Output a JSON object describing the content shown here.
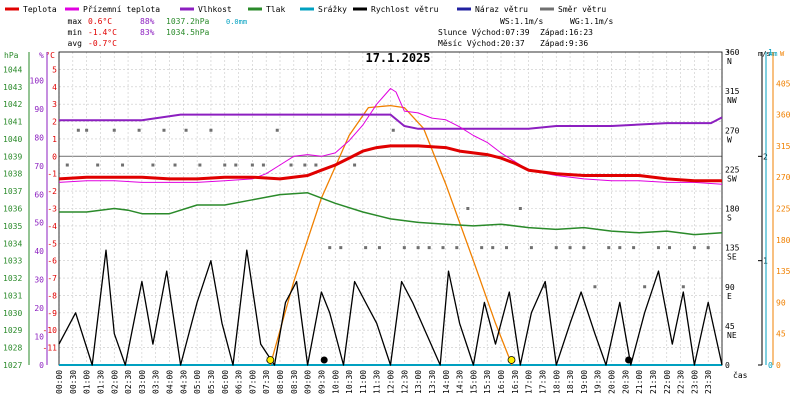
{
  "legend": [
    {
      "label": "Teplota",
      "color": "#e00000"
    },
    {
      "label": "Přízemní teplota",
      "color": "#e000e0"
    },
    {
      "label": "Vlhkost",
      "color": "#8c1fc0"
    },
    {
      "label": "Tlak",
      "color": "#2a8a2a"
    },
    {
      "label": "Srážky",
      "color": "#00a0c0"
    },
    {
      "label": "Rychlost větru",
      "color": "#000000"
    },
    {
      "label": "Náraz větru",
      "color": "#2020a0"
    },
    {
      "label": "Směr větru",
      "color": "#707070"
    }
  ],
  "stats": {
    "max_label": "max",
    "max_temp": "0.6°C",
    "max_hum": "88%",
    "max_press": "1037.2hPa",
    "max_rain": "0.0mm",
    "min_label": "min",
    "min_temp": "-1.4°C",
    "min_hum": "83%",
    "min_press": "1034.5hPa",
    "avg_label": "avg",
    "avg_temp": "-0.7°C"
  },
  "wind_info": {
    "ws": "WS:1.1m/s",
    "wg": "WG:1.1m/s",
    "sun": "Slunce Východ:07:39",
    "sun_set": "Západ:16:23",
    "moon": "Měsíc  Východ:20:37",
    "moon_set": "Západ:9:36"
  },
  "title": "17.1.2025",
  "axis_units": {
    "hpa": "hPa",
    "pct": "%",
    "degc": "°C",
    "deg": "°",
    "ms": "m/s",
    "mm": "mm",
    "w": "W",
    "cas": "čas"
  },
  "colors": {
    "temp": "#e00000",
    "ground": "#e000e0",
    "hum": "#8c1fc0",
    "press": "#2a8a2a",
    "rain": "#00a0c0",
    "wind": "#000000",
    "dir": "#707070",
    "solar": "#f08000",
    "grid": "#c8c8c8",
    "zero": "#808080"
  },
  "chart_data": {
    "type": "line",
    "title": "17.1.2025",
    "x_unit": "čas",
    "x_ticks": [
      "00:00",
      "00:30",
      "01:00",
      "01:30",
      "02:00",
      "02:30",
      "03:00",
      "03:30",
      "04:00",
      "04:30",
      "05:00",
      "05:30",
      "06:00",
      "06:30",
      "07:00",
      "07:30",
      "08:00",
      "08:30",
      "09:00",
      "09:30",
      "10:00",
      "10:30",
      "11:00",
      "11:30",
      "12:00",
      "12:30",
      "13:00",
      "13:30",
      "14:00",
      "14:30",
      "15:00",
      "15:30",
      "16:00",
      "16:30",
      "17:00",
      "17:30",
      "18:00",
      "18:30",
      "19:00",
      "19:30",
      "20:00",
      "20:30",
      "21:00",
      "21:30",
      "22:00",
      "22:30",
      "23:00",
      "23:30"
    ],
    "axes": {
      "pressure_hpa": {
        "range": [
          1027,
          1045
        ],
        "ticks": [
          "1027",
          "1028",
          "1029",
          "1030",
          "1031",
          "1032",
          "1033",
          "1034",
          "1035",
          "1036",
          "1037",
          "1038",
          "1039",
          "1040",
          "1041",
          "1042",
          "1043",
          "1044"
        ]
      },
      "humidity_pct": {
        "range": [
          0,
          110
        ],
        "ticks": [
          "0",
          "10",
          "20",
          "30",
          "40",
          "50",
          "60",
          "70",
          "80",
          "90",
          "100"
        ]
      },
      "temp_c": {
        "range": [
          -12,
          6
        ],
        "ticks": [
          "-11",
          "-10",
          "-9",
          "-8",
          "-7",
          "-6",
          "-5",
          "-4",
          "-3",
          "-2",
          "-1",
          "0",
          "1",
          "2",
          "3",
          "4",
          "5"
        ]
      },
      "direction_deg": {
        "range": [
          0,
          360
        ],
        "ticks": [
          "0",
          "45",
          "90",
          "135",
          "180",
          "225",
          "270",
          "315",
          "360"
        ],
        "compass": [
          "",
          "NE",
          "E",
          "SE",
          "S",
          "SW",
          "W",
          "NW",
          "N"
        ]
      },
      "wind_ms": {
        "range": [
          0,
          3
        ],
        "ticks": [
          "0",
          "1",
          "2"
        ]
      },
      "rain_mm": {
        "range": [
          0,
          1
        ],
        "ticks": [
          "0",
          "1"
        ]
      },
      "solar_w": {
        "range": [
          0,
          450
        ],
        "ticks": [
          "0",
          "45",
          "90",
          "135",
          "180",
          "225",
          "270",
          "315",
          "360",
          "405"
        ]
      }
    },
    "series": [
      {
        "name": "Teplota",
        "unit": "°C",
        "x_hours": [
          0,
          1,
          2,
          3,
          4,
          5,
          6,
          7,
          8,
          9,
          9.5,
          10,
          10.5,
          11,
          11.5,
          12,
          13,
          14,
          14.5,
          15,
          15.5,
          16,
          16.5,
          17,
          18,
          19,
          20,
          21,
          22,
          23,
          24
        ],
        "values": [
          -1.3,
          -1.2,
          -1.2,
          -1.2,
          -1.3,
          -1.3,
          -1.2,
          -1.2,
          -1.3,
          -1.1,
          -0.8,
          -0.5,
          -0.1,
          0.3,
          0.5,
          0.6,
          0.6,
          0.5,
          0.3,
          0.2,
          0.1,
          -0.1,
          -0.4,
          -0.8,
          -1.0,
          -1.1,
          -1.1,
          -1.1,
          -1.3,
          -1.4,
          -1.4
        ]
      },
      {
        "name": "Přízemní teplota",
        "unit": "°C",
        "x_hours": [
          0,
          1,
          2,
          3,
          4,
          5,
          6,
          7,
          7.5,
          8,
          8.5,
          9,
          9.5,
          10,
          10.5,
          11,
          11.5,
          12,
          12.2,
          12.5,
          13,
          13.5,
          14,
          14.5,
          15,
          15.5,
          16,
          16.5,
          17,
          18,
          19,
          20,
          21,
          22,
          23,
          24
        ],
        "values": [
          -1.5,
          -1.4,
          -1.4,
          -1.5,
          -1.5,
          -1.5,
          -1.4,
          -1.3,
          -1.0,
          -0.5,
          0.0,
          0.1,
          0.0,
          0.2,
          0.9,
          1.8,
          3.0,
          3.9,
          3.7,
          2.6,
          2.5,
          2.2,
          2.1,
          1.7,
          1.2,
          0.8,
          0.2,
          -0.3,
          -0.8,
          -1.1,
          -1.3,
          -1.4,
          -1.4,
          -1.5,
          -1.5,
          -1.6
        ]
      },
      {
        "name": "Vlhkost",
        "unit": "%",
        "x_hours": [
          0,
          3,
          4.4,
          6,
          8,
          10,
          11,
          12,
          12.5,
          13,
          14,
          16,
          17,
          18,
          20,
          22,
          23.6,
          24
        ],
        "values": [
          86,
          86,
          88,
          88,
          88,
          88,
          88,
          88,
          84,
          83,
          83,
          83,
          83,
          84,
          84,
          85,
          85,
          87
        ]
      },
      {
        "name": "Tlak",
        "unit": "hPa",
        "x_hours": [
          0,
          1,
          2,
          2.5,
          3,
          4,
          5,
          6,
          7,
          8,
          9,
          9.5,
          10,
          11,
          12,
          13,
          14,
          15,
          16,
          17,
          18,
          19,
          20,
          21,
          22,
          23,
          24
        ],
        "values": [
          1035.8,
          1035.8,
          1036.0,
          1035.9,
          1035.7,
          1035.7,
          1036.2,
          1036.2,
          1036.5,
          1036.8,
          1036.9,
          1036.6,
          1036.3,
          1035.8,
          1035.4,
          1035.2,
          1035.1,
          1035.0,
          1035.1,
          1034.9,
          1034.8,
          1034.9,
          1034.7,
          1034.6,
          1034.7,
          1034.5,
          1034.6
        ]
      },
      {
        "name": "Rychlost větru",
        "unit": "m/s",
        "x_hours": [
          0,
          0.6,
          1.2,
          1.7,
          2.0,
          2.4,
          3.0,
          3.4,
          3.9,
          4.4,
          5.0,
          5.5,
          5.9,
          6.3,
          6.8,
          7.3,
          7.8,
          8.2,
          8.6,
          9.0,
          9.5,
          9.8,
          10.3,
          10.7,
          11.1,
          11.5,
          12.0,
          12.4,
          12.8,
          13.3,
          13.8,
          14.1,
          14.5,
          15.0,
          15.4,
          15.8,
          16.3,
          16.7,
          17.1,
          17.6,
          18.0,
          18.5,
          18.9,
          19.4,
          19.8,
          20.3,
          20.7,
          21.2,
          21.7,
          22.2,
          22.6,
          23.0,
          23.5,
          24
        ],
        "values": [
          0.2,
          0.5,
          0.0,
          1.1,
          0.3,
          0.0,
          0.8,
          0.2,
          0.9,
          0.0,
          0.6,
          1.0,
          0.4,
          0.0,
          1.1,
          0.2,
          0.0,
          0.6,
          0.8,
          0.0,
          0.7,
          0.5,
          0.0,
          0.8,
          0.6,
          0.4,
          0.0,
          0.8,
          0.6,
          0.3,
          0.0,
          0.9,
          0.4,
          0.0,
          0.6,
          0.2,
          0.7,
          0.0,
          0.5,
          0.8,
          0.0,
          0.4,
          0.7,
          0.3,
          0.0,
          0.6,
          0.0,
          0.5,
          0.9,
          0.2,
          0.7,
          0.0,
          0.6,
          0.0
        ]
      },
      {
        "name": "Srážky",
        "unit": "mm",
        "x_hours": [
          0,
          24
        ],
        "values": [
          0.0,
          0.0
        ]
      },
      {
        "name": "Solar",
        "unit": "W",
        "x_hours": [
          7.65,
          8.5,
          9.5,
          10.5,
          11.2,
          12.0,
          12.5,
          13.2,
          14.0,
          15.0,
          15.8,
          16.4
        ],
        "values": [
          0,
          120,
          240,
          330,
          370,
          373,
          370,
          340,
          260,
          150,
          60,
          0
        ]
      }
    ],
    "wind_direction_points": {
      "unit": "°",
      "x_hours": [
        0.3,
        0.7,
        1.0,
        1.4,
        2.0,
        2.3,
        2.9,
        3.4,
        3.8,
        4.2,
        4.6,
        5.1,
        5.5,
        6.0,
        6.4,
        7.0,
        7.4,
        7.9,
        8.4,
        8.9,
        9.3,
        9.8,
        10.2,
        10.7,
        11.1,
        11.6,
        12.1,
        12.5,
        13.0,
        13.4,
        13.9,
        14.4,
        14.8,
        15.3,
        15.7,
        16.2,
        16.7,
        17.1,
        17.6,
        18.0,
        18.5,
        19.0,
        19.4,
        19.9,
        20.3,
        20.8,
        21.2,
        21.7,
        22.1,
        22.6,
        23.0,
        23.5
      ],
      "values": [
        230,
        270,
        270,
        230,
        270,
        230,
        270,
        230,
        270,
        230,
        270,
        230,
        270,
        230,
        230,
        230,
        230,
        270,
        230,
        230,
        230,
        135,
        135,
        230,
        135,
        135,
        270,
        135,
        135,
        135,
        135,
        135,
        180,
        135,
        135,
        135,
        180,
        135,
        90,
        135,
        135,
        135,
        90,
        135,
        135,
        135,
        90,
        135,
        135,
        90,
        135,
        135
      ]
    },
    "markers": {
      "sunrise_hour": 7.65,
      "sunset_hour": 16.38,
      "moonrise_hour": 20.62,
      "moonset_hour": 9.6
    }
  }
}
